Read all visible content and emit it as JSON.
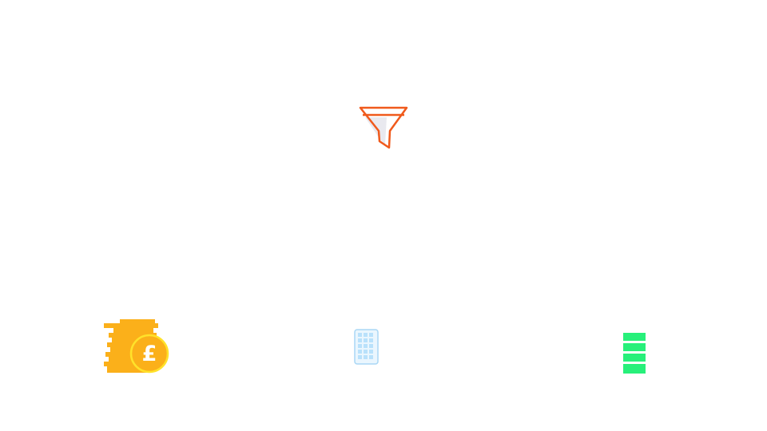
{
  "icons": {
    "funnel": {
      "name": "funnel-icon",
      "stroke": "#f05a1c",
      "fill": "#e9e9ef"
    },
    "coins": {
      "name": "pound-coins-icon",
      "symbol": "£",
      "body": "#fbb01a",
      "coin": "#fbb01a",
      "coin_ring": "#ffe22a",
      "symbol_color": "#ffffff"
    },
    "grid": {
      "name": "grid-table-icon",
      "border": "#a9d7f5",
      "cell": "#b9e1fb",
      "background": "#eaf6fe"
    },
    "stack": {
      "name": "stacked-bars-icon",
      "fill": "#27f07a"
    }
  }
}
